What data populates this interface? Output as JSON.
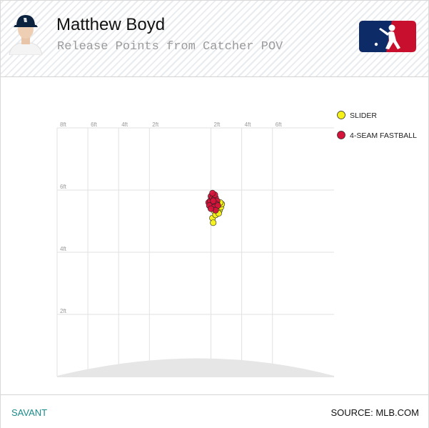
{
  "header": {
    "player_name": "Matthew Boyd",
    "subtitle": "Release Points from Catcher POV",
    "logo_icon": "mlb-logo-icon",
    "avatar_icon": "player-headshot-icon"
  },
  "footer": {
    "left_label": "SAVANT",
    "right_label": "SOURCE: MLB.COM"
  },
  "colors": {
    "slider": "#f5f016",
    "fastball": "#d6133b",
    "grid": "#e2e2e2",
    "mound": "#e6e6e6",
    "footer_link": "#1b8a8a"
  },
  "chart_data": {
    "type": "scatter",
    "title": "Release Points from Catcher POV",
    "x_ticks": [
      "8ft",
      "6ft",
      "4ft",
      "2ft",
      "2ft",
      "4ft",
      "6ft"
    ],
    "x_tick_values": [
      -8,
      -6,
      -4,
      -2,
      2,
      4,
      6
    ],
    "y_ticks": [
      "6ft",
      "4ft",
      "2ft"
    ],
    "y_tick_values": [
      6,
      4,
      2
    ],
    "xlim": [
      -8,
      10
    ],
    "ylim": [
      0,
      8
    ],
    "grid": true,
    "legend_position": "top-right",
    "series": [
      {
        "name": "SLIDER",
        "color": "#f5f016",
        "points": [
          [
            2.1,
            5.1
          ],
          [
            2.25,
            5.3
          ],
          [
            2.35,
            5.35
          ],
          [
            2.45,
            5.4
          ],
          [
            2.55,
            5.35
          ],
          [
            2.65,
            5.45
          ],
          [
            2.7,
            5.55
          ],
          [
            2.6,
            5.6
          ],
          [
            2.4,
            5.55
          ],
          [
            2.2,
            5.4
          ],
          [
            2.3,
            5.2
          ],
          [
            2.5,
            5.25
          ],
          [
            2.15,
            4.95
          ]
        ]
      },
      {
        "name": "4-SEAM FASTBALL",
        "color": "#d6133b",
        "points": [
          [
            1.85,
            5.6
          ],
          [
            1.95,
            5.65
          ],
          [
            2.0,
            5.8
          ],
          [
            2.1,
            5.75
          ],
          [
            2.2,
            5.7
          ],
          [
            2.3,
            5.75
          ],
          [
            2.4,
            5.65
          ],
          [
            2.15,
            5.55
          ],
          [
            2.05,
            5.5
          ],
          [
            2.25,
            5.85
          ],
          [
            1.9,
            5.5
          ],
          [
            2.35,
            5.55
          ],
          [
            2.2,
            5.45
          ],
          [
            2.45,
            5.5
          ],
          [
            2.1,
            5.9
          ],
          [
            2.3,
            5.35
          ],
          [
            2.0,
            5.4
          ],
          [
            2.15,
            5.65
          ]
        ]
      }
    ]
  }
}
